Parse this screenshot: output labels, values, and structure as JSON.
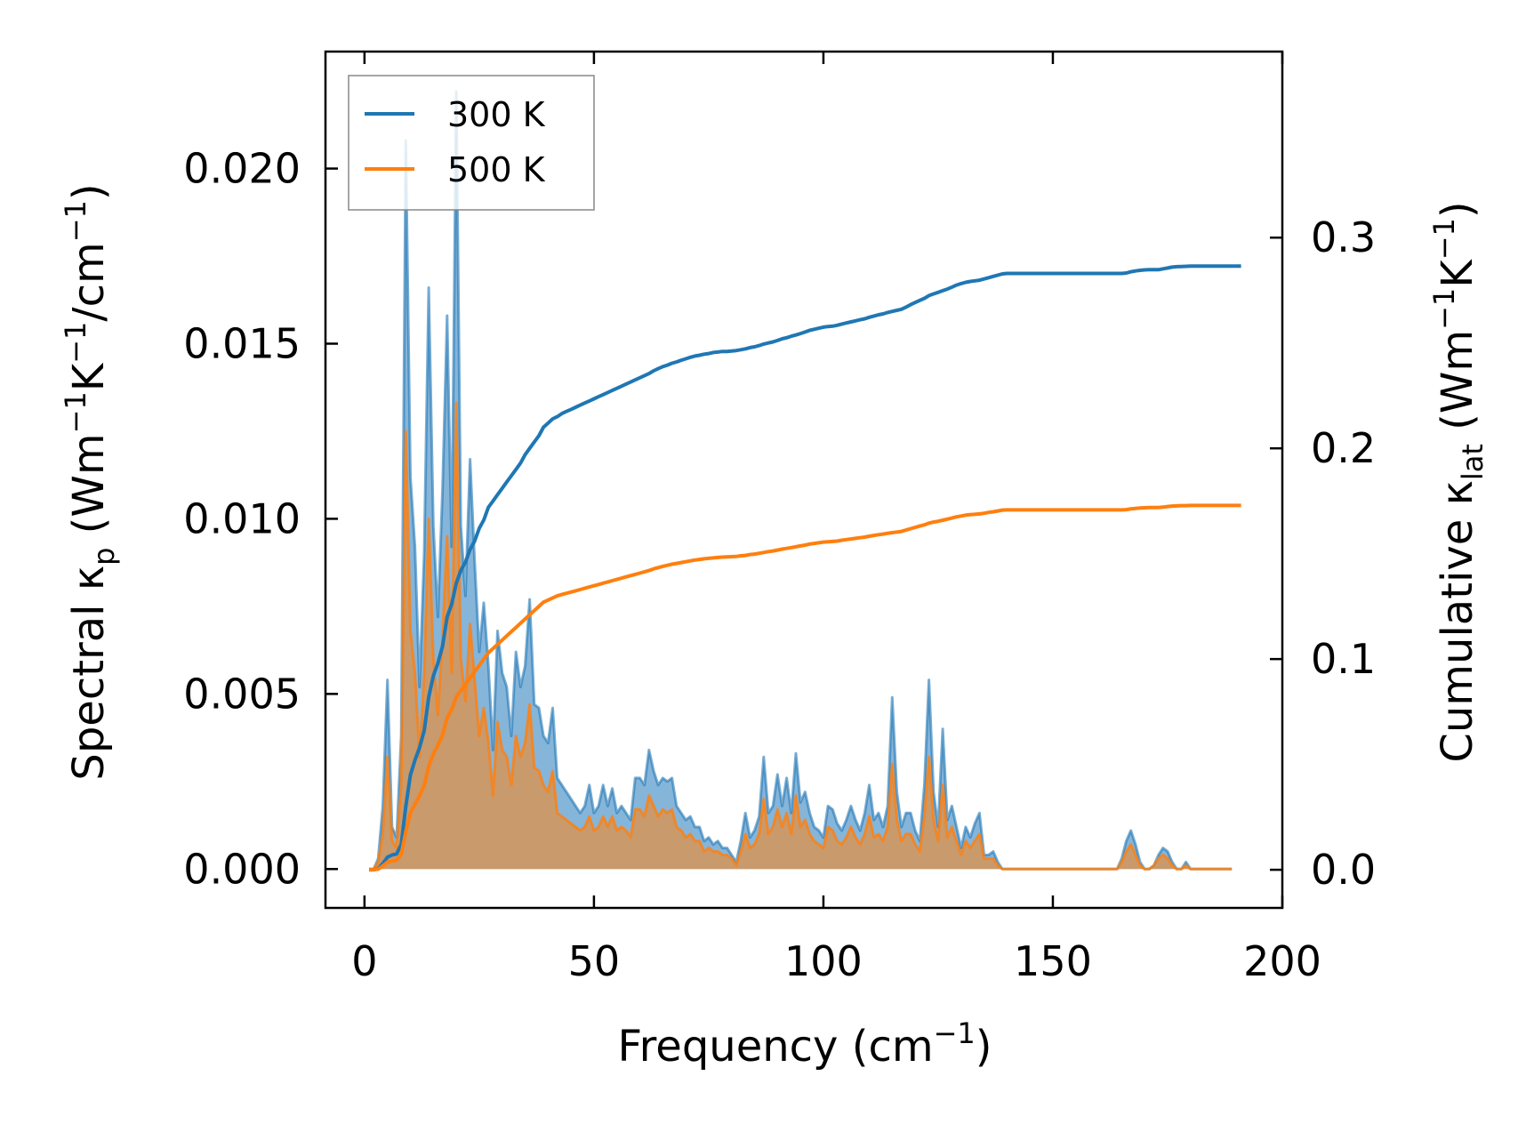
{
  "chart_data": {
    "type": "line",
    "title": "",
    "xlabel": {
      "main": "Frequency (cm",
      "sup": "−1",
      "tail": ")"
    },
    "ylabel_left": {
      "a": "Spectral κ",
      "a_sub": "p",
      "b": " (Wm",
      "b_sup": "−1",
      "c": "K",
      "c_sup": "−1",
      "d": "/cm",
      "d_sup": "−1",
      "e": ")"
    },
    "ylabel_right": {
      "a": "Cumulative κ",
      "a_sub": "lat",
      "b": " (Wm",
      "b_sup": "−1",
      "c": "K",
      "c_sup": "−1",
      "e": ")"
    },
    "xlim": [
      -8.5,
      200
    ],
    "ylim_left": [
      -0.00111,
      0.02334
    ],
    "ylim_right": [
      -0.0181,
      0.3883
    ],
    "xticks": [
      {
        "value": 0,
        "label": "0"
      },
      {
        "value": 50,
        "label": "50"
      },
      {
        "value": 100,
        "label": "100"
      },
      {
        "value": 150,
        "label": "150"
      },
      {
        "value": 200,
        "label": "200"
      }
    ],
    "yticks_left": [
      {
        "value": 0,
        "label": "0.000"
      },
      {
        "value": 0.005,
        "label": "0.005"
      },
      {
        "value": 0.01,
        "label": "0.010"
      },
      {
        "value": 0.015,
        "label": "0.015"
      },
      {
        "value": 0.02,
        "label": "0.020"
      }
    ],
    "yticks_right": [
      {
        "value": 0.0,
        "label": "0.0"
      },
      {
        "value": 0.1,
        "label": "0.1"
      },
      {
        "value": 0.2,
        "label": "0.2"
      },
      {
        "value": 0.3,
        "label": "0.3"
      }
    ],
    "legend": {
      "position": "upper left",
      "entries": [
        "300 K",
        "500 K"
      ]
    },
    "colors": {
      "t300": "#1f77b4",
      "t500": "#ff7f0e",
      "fill_300": "#5e9ccd",
      "fill_500": "#c99a6c"
    },
    "spectral_x": [
      1,
      2,
      3,
      4,
      5,
      6,
      7,
      8,
      9,
      10,
      11,
      12,
      13,
      14,
      15,
      16,
      17,
      18,
      19,
      20,
      21,
      22,
      23,
      24,
      25,
      26,
      27,
      28,
      29,
      30,
      31,
      32,
      33,
      34,
      35,
      36,
      37,
      38,
      39,
      40,
      41,
      42,
      43,
      44,
      45,
      46,
      47,
      48,
      49,
      50,
      51,
      52,
      53,
      54,
      55,
      56,
      57,
      58,
      59,
      60,
      61,
      62,
      63,
      64,
      65,
      66,
      67,
      68,
      69,
      70,
      71,
      72,
      73,
      74,
      75,
      76,
      77,
      78,
      79,
      80,
      81,
      82,
      83,
      84,
      85,
      86,
      87,
      88,
      89,
      90,
      91,
      92,
      93,
      94,
      95,
      96,
      97,
      98,
      99,
      100,
      101,
      102,
      103,
      104,
      105,
      106,
      107,
      108,
      109,
      110,
      111,
      112,
      113,
      114,
      115,
      116,
      117,
      118,
      119,
      120,
      121,
      122,
      123,
      124,
      125,
      126,
      127,
      128,
      129,
      130,
      131,
      132,
      133,
      134,
      135,
      136,
      137,
      138,
      139,
      140,
      141,
      142,
      143,
      144,
      145,
      146,
      147,
      148,
      149,
      150,
      151,
      152,
      153,
      154,
      155,
      156,
      157,
      158,
      159,
      160,
      161,
      162,
      163,
      164,
      165,
      166,
      167,
      168,
      169,
      170,
      171,
      172,
      173,
      174,
      175,
      176,
      177,
      178,
      179,
      180,
      181,
      182,
      183,
      184,
      185,
      186,
      187,
      188,
      189,
      190,
      191
    ],
    "series": [
      {
        "name": "300 K",
        "spectral": [
          0,
          0,
          0.0003,
          0.0018,
          0.0054,
          0.0012,
          0.0009,
          0.0038,
          0.0208,
          0.0112,
          0.0092,
          0.0052,
          0.009,
          0.0166,
          0.0098,
          0.0072,
          0.0108,
          0.0158,
          0.0092,
          0.0222,
          0.0098,
          0.0078,
          0.0117,
          0.0088,
          0.0062,
          0.0076,
          0.0058,
          0.0034,
          0.0068,
          0.0056,
          0.0052,
          0.0038,
          0.0062,
          0.0052,
          0.0058,
          0.0077,
          0.0047,
          0.0046,
          0.0038,
          0.0036,
          0.0046,
          0.0026,
          0.0024,
          0.0022,
          0.002,
          0.0018,
          0.0016,
          0.0018,
          0.0024,
          0.0016,
          0.0018,
          0.0024,
          0.0018,
          0.0023,
          0.0016,
          0.0018,
          0.0016,
          0.0014,
          0.0026,
          0.0026,
          0.0024,
          0.0034,
          0.0028,
          0.0024,
          0.0026,
          0.0025,
          0.0026,
          0.0018,
          0.0016,
          0.0014,
          0.0015,
          0.0012,
          0.0012,
          0.0008,
          0.0009,
          0.0007,
          0.0008,
          0.0006,
          0.0006,
          0.0004,
          0.0002,
          0.0008,
          0.0016,
          0.0009,
          0.0011,
          0.0015,
          0.0032,
          0.0016,
          0.0018,
          0.0027,
          0.0018,
          0.0026,
          0.0016,
          0.0033,
          0.0019,
          0.0022,
          0.0016,
          0.0012,
          0.0011,
          0.0009,
          0.0018,
          0.0017,
          0.0013,
          0.0011,
          0.0014,
          0.0018,
          0.0014,
          0.0011,
          0.0016,
          0.0024,
          0.0014,
          0.0016,
          0.0012,
          0.0018,
          0.0049,
          0.0022,
          0.0012,
          0.0016,
          0.0016,
          0.0011,
          0.0008,
          0.0024,
          0.0054,
          0.0022,
          0.0012,
          0.004,
          0.0014,
          0.0018,
          0.0012,
          0.0006,
          0.0012,
          0.0009,
          0.0013,
          0.0016,
          0.0004,
          0.0004,
          0.0005,
          0.0002,
          0,
          0,
          0,
          0,
          0,
          0,
          0,
          0,
          0,
          0,
          0,
          0,
          0,
          0,
          0,
          0,
          0,
          0,
          0,
          0,
          0,
          0,
          0,
          0,
          0,
          0,
          0.0003,
          0.0008,
          0.0011,
          0.0007,
          0.0002,
          0,
          0,
          0.0001,
          0.0004,
          0.0006,
          0.0005,
          0.0002,
          0,
          0,
          0.0002,
          0,
          0,
          0,
          0,
          0,
          0,
          0,
          0,
          0,
          0
        ],
        "cumulative": [
          0,
          0,
          0.0005,
          0.003,
          0.006,
          0.007,
          0.0075,
          0.012,
          0.03,
          0.045,
          0.052,
          0.058,
          0.066,
          0.082,
          0.092,
          0.098,
          0.106,
          0.12,
          0.126,
          0.136,
          0.142,
          0.146,
          0.152,
          0.156,
          0.162,
          0.166,
          0.172,
          0.175,
          0.178,
          0.181,
          0.184,
          0.187,
          0.19,
          0.193,
          0.197,
          0.2,
          0.203,
          0.206,
          0.21,
          0.212,
          0.214,
          0.215,
          0.2165,
          0.2175,
          0.2185,
          0.2195,
          0.2205,
          0.2215,
          0.2225,
          0.2235,
          0.2245,
          0.2255,
          0.2265,
          0.2275,
          0.2285,
          0.2295,
          0.2305,
          0.2315,
          0.2325,
          0.2335,
          0.2345,
          0.2355,
          0.2368,
          0.2378,
          0.2388,
          0.2395,
          0.2404,
          0.241,
          0.2418,
          0.2425,
          0.2432,
          0.2438,
          0.2442,
          0.2447,
          0.245,
          0.2455,
          0.2457,
          0.246,
          0.246,
          0.2462,
          0.2464,
          0.2468,
          0.2472,
          0.2478,
          0.2482,
          0.2488,
          0.2495,
          0.25,
          0.2505,
          0.2512,
          0.252,
          0.2525,
          0.2532,
          0.2538,
          0.2545,
          0.2552,
          0.256,
          0.2565,
          0.257,
          0.2575,
          0.2578,
          0.258,
          0.2584,
          0.259,
          0.2595,
          0.26,
          0.2605,
          0.261,
          0.2615,
          0.2622,
          0.2628,
          0.2634,
          0.2638,
          0.2645,
          0.265,
          0.2655,
          0.266,
          0.267,
          0.2682,
          0.2692,
          0.2702,
          0.2712,
          0.2725,
          0.2733,
          0.274,
          0.2748,
          0.2756,
          0.2765,
          0.2775,
          0.2782,
          0.2788,
          0.2792,
          0.2795,
          0.2798,
          0.2804,
          0.281,
          0.2816,
          0.2822,
          0.2828,
          0.283,
          0.283,
          0.283,
          0.283,
          0.283,
          0.283,
          0.283,
          0.283,
          0.283,
          0.283,
          0.283,
          0.283,
          0.283,
          0.283,
          0.283,
          0.283,
          0.283,
          0.283,
          0.283,
          0.283,
          0.283,
          0.283,
          0.283,
          0.283,
          0.283,
          0.283,
          0.2832,
          0.2838,
          0.2842,
          0.2845,
          0.2847,
          0.2848,
          0.2848,
          0.2848,
          0.2852,
          0.2856,
          0.286,
          0.2862,
          0.2863,
          0.2864,
          0.2865,
          0.2865,
          0.2865,
          0.2865,
          0.2865,
          0.2865,
          0.2865,
          0.2865,
          0.2865,
          0.2865,
          0.2865,
          0.2865
        ]
      },
      {
        "name": "500 K",
        "spectral": [
          0,
          0,
          0.0002,
          0.001,
          0.0032,
          0.0008,
          0.0006,
          0.0024,
          0.0125,
          0.0068,
          0.0056,
          0.0032,
          0.0055,
          0.01,
          0.006,
          0.0044,
          0.0066,
          0.0095,
          0.0056,
          0.0133,
          0.006,
          0.0048,
          0.007,
          0.0054,
          0.0038,
          0.0046,
          0.0036,
          0.0021,
          0.0042,
          0.0034,
          0.0032,
          0.0024,
          0.0038,
          0.0032,
          0.0036,
          0.0047,
          0.0029,
          0.0028,
          0.0024,
          0.0022,
          0.0028,
          0.0016,
          0.0015,
          0.0014,
          0.0013,
          0.0012,
          0.0011,
          0.0012,
          0.0015,
          0.0011,
          0.0012,
          0.0015,
          0.0012,
          0.0015,
          0.0011,
          0.0012,
          0.0011,
          0.0009,
          0.0017,
          0.0017,
          0.0015,
          0.0021,
          0.0018,
          0.0015,
          0.0017,
          0.0016,
          0.0017,
          0.0012,
          0.0011,
          0.0009,
          0.001,
          0.0008,
          0.0008,
          0.0005,
          0.0006,
          0.0005,
          0.0005,
          0.0004,
          0.0004,
          0.0003,
          0.0001,
          0.0005,
          0.001,
          0.0006,
          0.0007,
          0.001,
          0.002,
          0.001,
          0.0012,
          0.0017,
          0.0012,
          0.0016,
          0.001,
          0.0021,
          0.0012,
          0.0014,
          0.001,
          0.0008,
          0.0007,
          0.0006,
          0.0012,
          0.0011,
          0.0008,
          0.0007,
          0.0009,
          0.0012,
          0.0009,
          0.0007,
          0.001,
          0.0015,
          0.0009,
          0.001,
          0.0008,
          0.0012,
          0.003,
          0.0014,
          0.0008,
          0.001,
          0.001,
          0.0007,
          0.0005,
          0.0015,
          0.0032,
          0.0014,
          0.0008,
          0.0024,
          0.0009,
          0.0012,
          0.0008,
          0.0004,
          0.0008,
          0.0006,
          0.0008,
          0.001,
          0.0003,
          0.0003,
          0.0003,
          0.0001,
          0,
          0,
          0,
          0,
          0,
          0,
          0,
          0,
          0,
          0,
          0,
          0,
          0,
          0,
          0,
          0,
          0,
          0,
          0,
          0,
          0,
          0,
          0,
          0,
          0,
          0,
          0.0002,
          0.0005,
          0.0007,
          0.0004,
          0.0001,
          0,
          0,
          0.0001,
          0.0003,
          0.0004,
          0.0003,
          0.0001,
          0,
          0,
          0.0001,
          0,
          0,
          0,
          0,
          0,
          0,
          0,
          0,
          0,
          0
        ],
        "cumulative": [
          0,
          0,
          0.0003,
          0.0018,
          0.0036,
          0.0042,
          0.0045,
          0.0072,
          0.018,
          0.027,
          0.031,
          0.035,
          0.04,
          0.049,
          0.055,
          0.059,
          0.064,
          0.072,
          0.076,
          0.082,
          0.085,
          0.088,
          0.091,
          0.094,
          0.097,
          0.1,
          0.103,
          0.105,
          0.107,
          0.109,
          0.111,
          0.113,
          0.115,
          0.117,
          0.119,
          0.121,
          0.123,
          0.125,
          0.127,
          0.128,
          0.129,
          0.13,
          0.1306,
          0.1312,
          0.1318,
          0.1324,
          0.133,
          0.1336,
          0.1342,
          0.1348,
          0.1354,
          0.136,
          0.1366,
          0.1372,
          0.1378,
          0.1384,
          0.139,
          0.1396,
          0.1402,
          0.1408,
          0.1414,
          0.142,
          0.1428,
          0.1434,
          0.144,
          0.1445,
          0.145,
          0.1454,
          0.1458,
          0.1462,
          0.1466,
          0.147,
          0.1473,
          0.1476,
          0.1478,
          0.148,
          0.1482,
          0.1484,
          0.1485,
          0.1486,
          0.1487,
          0.149,
          0.1492,
          0.1496,
          0.1498,
          0.1502,
          0.1506,
          0.151,
          0.1513,
          0.1517,
          0.1522,
          0.1525,
          0.1529,
          0.1533,
          0.1537,
          0.1541,
          0.1546,
          0.1549,
          0.1552,
          0.1555,
          0.1557,
          0.1558,
          0.156,
          0.1564,
          0.1567,
          0.157,
          0.1573,
          0.1576,
          0.1579,
          0.1583,
          0.1587,
          0.159,
          0.1593,
          0.1597,
          0.16,
          0.1603,
          0.1606,
          0.1612,
          0.1619,
          0.1625,
          0.1631,
          0.1637,
          0.1645,
          0.165,
          0.1654,
          0.1659,
          0.1664,
          0.1669,
          0.1675,
          0.1679,
          0.1683,
          0.1685,
          0.1687,
          0.1689,
          0.1692,
          0.1696,
          0.1699,
          0.1703,
          0.1707,
          0.1708,
          0.1708,
          0.1708,
          0.1708,
          0.1708,
          0.1708,
          0.1708,
          0.1708,
          0.1708,
          0.1708,
          0.1708,
          0.1708,
          0.1708,
          0.1708,
          0.1708,
          0.1708,
          0.1708,
          0.1708,
          0.1708,
          0.1708,
          0.1708,
          0.1708,
          0.1708,
          0.1708,
          0.1708,
          0.1708,
          0.1709,
          0.1713,
          0.1715,
          0.1717,
          0.1718,
          0.1719,
          0.1719,
          0.1719,
          0.1721,
          0.1724,
          0.1726,
          0.1727,
          0.1728,
          0.1728,
          0.1729,
          0.1729,
          0.1729,
          0.1729,
          0.1729,
          0.1729,
          0.1729,
          0.1729,
          0.1729,
          0.1729,
          0.1729,
          0.1729
        ]
      }
    ]
  }
}
